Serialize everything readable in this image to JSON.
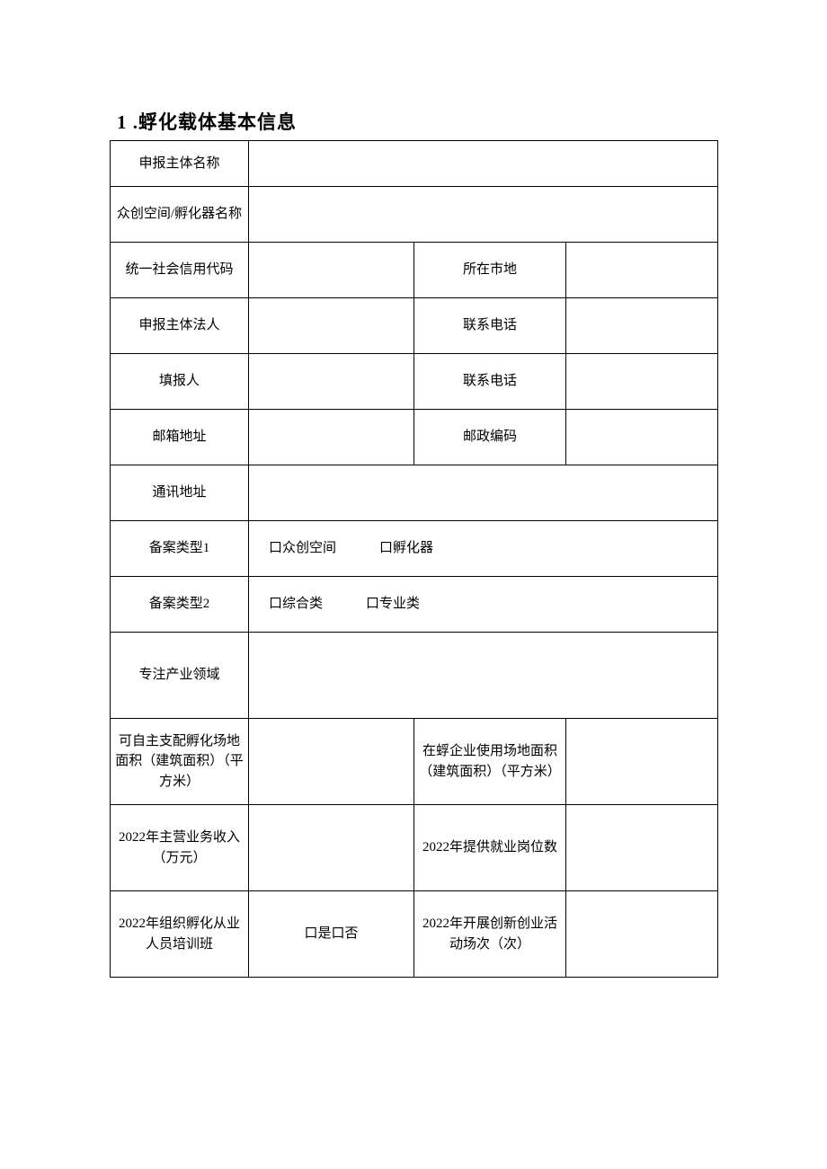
{
  "title": "1 .蜉化载体基本信息",
  "labels": {
    "applicant_name": "申报主体名称",
    "space_name": "众创空间/孵化器名称",
    "social_credit_code": "统一社会信用代码",
    "city": "所在市地",
    "legal_person": "申报主体法人",
    "contact_phone": "联系电话",
    "filler": "填报人",
    "filler_phone": "联系电话",
    "email": "邮箱地址",
    "postal_code": "邮政编码",
    "address": "通讯地址",
    "record_type1": "备案类型1",
    "record_type2": "备案类型2",
    "industry_focus": "专注产业领域",
    "self_area": "可自主支配孵化场地面积（建筑面积）（平方米）",
    "enterprise_area": "在蜉企业使用场地面积（建筑面积）（平方米）",
    "revenue_2022": "2022年主营业务收入（万元）",
    "jobs_2022": "2022年提供就业岗位数",
    "training_2022": "2022年组织孵化从业人员培训班",
    "activities_2022": "2022年开展创新创业活动场次（次）"
  },
  "checkboxes": {
    "type1_opt1": "口众创空间",
    "type1_opt2": "口孵化器",
    "type2_opt1": "口综合类",
    "type2_opt2": "口专业类",
    "yes_no": "口是口否"
  },
  "values": {
    "applicant_name": "",
    "space_name": "",
    "social_credit_code": "",
    "city": "",
    "legal_person": "",
    "contact_phone": "",
    "filler": "",
    "filler_phone": "",
    "email": "",
    "postal_code": "",
    "address": "",
    "industry_focus": "",
    "self_area": "",
    "enterprise_area": "",
    "revenue_2022": "",
    "jobs_2022": "",
    "activities_2022": ""
  },
  "style": {
    "background_color": "#ffffff",
    "border_color": "#000000",
    "text_color": "#000000",
    "title_fontsize": 21,
    "cell_fontsize": 15,
    "font_family": "SimSun"
  }
}
